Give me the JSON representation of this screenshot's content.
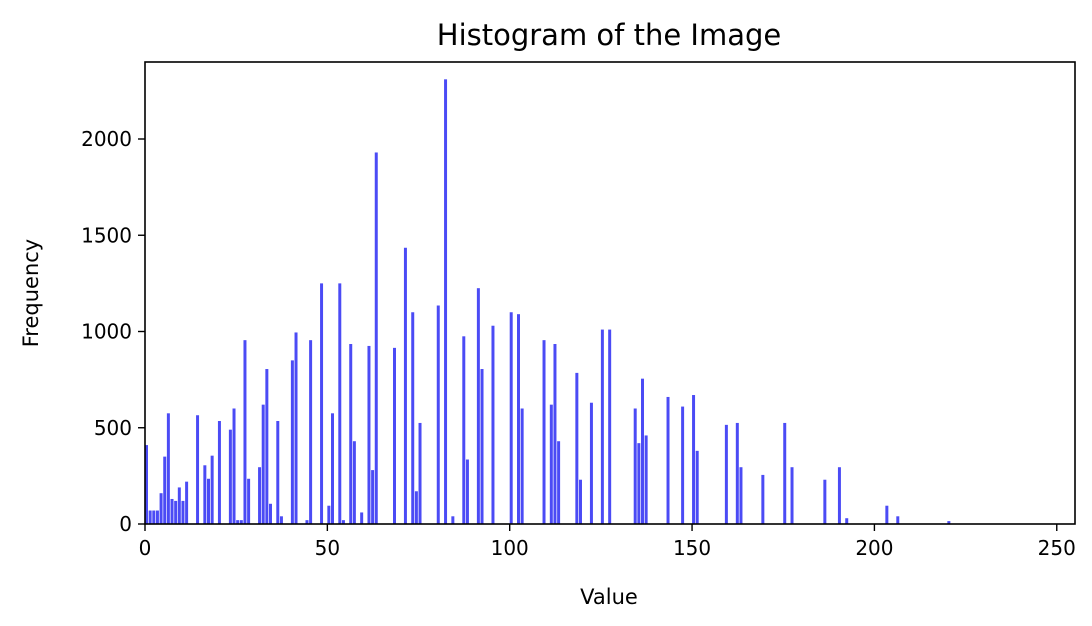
{
  "chart_data": {
    "type": "bar",
    "title": "Histogram of the Image",
    "xlabel": "Value",
    "ylabel": "Frequency",
    "xlim": [
      0,
      255
    ],
    "ylim": [
      0,
      2400
    ],
    "xticks": [
      0,
      50,
      100,
      150,
      200,
      250
    ],
    "yticks": [
      0,
      500,
      1000,
      1500,
      2000
    ],
    "grid": false,
    "bar_color": "#4b4bf5",
    "series": [
      {
        "x": [
          0,
          1,
          2,
          3,
          4,
          5,
          6,
          7,
          8,
          9,
          10,
          11,
          14,
          16,
          17,
          18,
          20,
          23,
          24,
          25,
          26,
          27,
          28,
          31,
          32,
          33,
          34,
          36,
          37,
          40,
          41,
          44,
          45,
          48,
          50,
          51,
          53,
          54,
          56,
          57,
          59,
          61,
          62,
          63,
          68,
          71,
          73,
          74,
          75,
          80,
          82,
          84,
          87,
          88,
          91,
          92,
          95,
          100,
          102,
          103,
          109,
          111,
          112,
          113,
          118,
          119,
          122,
          125,
          127,
          134,
          135,
          136,
          137,
          143,
          147,
          150,
          151,
          159,
          162,
          163,
          169,
          175,
          177,
          186,
          190,
          192,
          203,
          206,
          220
        ],
        "values": [
          410,
          70,
          70,
          70,
          160,
          350,
          575,
          130,
          120,
          190,
          120,
          220,
          565,
          305,
          235,
          355,
          535,
          490,
          600,
          20,
          20,
          955,
          235,
          295,
          620,
          805,
          105,
          535,
          40,
          850,
          995,
          20,
          955,
          1250,
          95,
          575,
          1250,
          20,
          935,
          430,
          60,
          925,
          280,
          1930,
          915,
          1435,
          1100,
          170,
          525,
          1135,
          2310,
          40,
          975,
          335,
          1225,
          805,
          1030,
          1100,
          1090,
          600,
          955,
          620,
          935,
          430,
          785,
          230,
          630,
          1010,
          1010,
          600,
          420,
          755,
          460,
          660,
          610,
          670,
          380,
          515,
          525,
          295,
          255,
          525,
          295,
          230,
          295,
          30,
          95,
          40,
          15
        ]
      }
    ]
  }
}
